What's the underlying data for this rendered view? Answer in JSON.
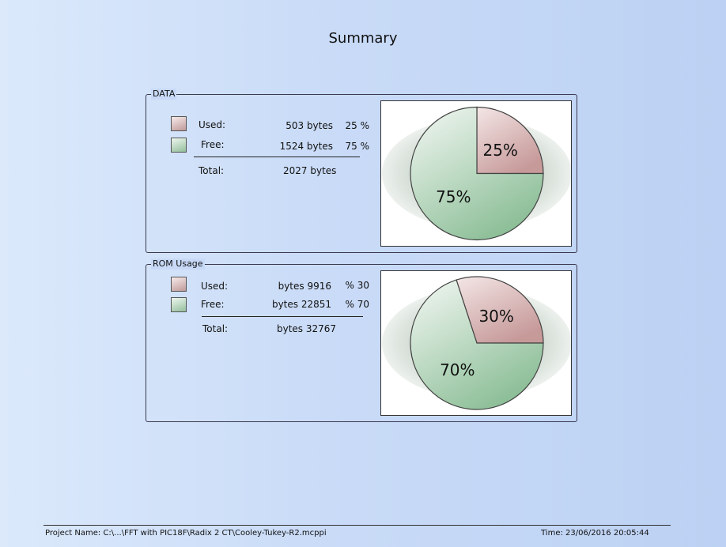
{
  "title": "Summary",
  "colors": {
    "used_base": "#c79a9a",
    "free_base": "#8dbf98"
  },
  "groups": [
    {
      "legend": "DATA",
      "used_label": "Used:",
      "used_value": "503 bytes",
      "used_pct": "25 %",
      "free_label": "Free:",
      "free_value": "1524 bytes",
      "free_pct": "75 %",
      "total_label": "Total:",
      "total_value": "2027 bytes"
    },
    {
      "legend": "ROM Usage",
      "used_label": "Used:",
      "used_value": "bytes 9916",
      "used_pct": "% 30",
      "free_label": "Free:",
      "free_value": "bytes 22851",
      "free_pct": "% 70",
      "total_label": "Total:",
      "total_value": "bytes 32767"
    }
  ],
  "chart_data": [
    {
      "type": "pie",
      "labels": [
        "Used",
        "Free"
      ],
      "values": [
        25,
        75
      ],
      "slice_labels": [
        "25%",
        "75%"
      ]
    },
    {
      "type": "pie",
      "labels": [
        "Used",
        "Free"
      ],
      "values": [
        30,
        70
      ],
      "slice_labels": [
        "30%",
        "70%"
      ]
    }
  ],
  "footer": {
    "project": "Project Name: C:\\...\\FFT with PIC18F\\Radix 2 CT\\Cooley-Tukey-R2.mcppi",
    "time": "Time: 23/06/2016 20:05:44"
  }
}
